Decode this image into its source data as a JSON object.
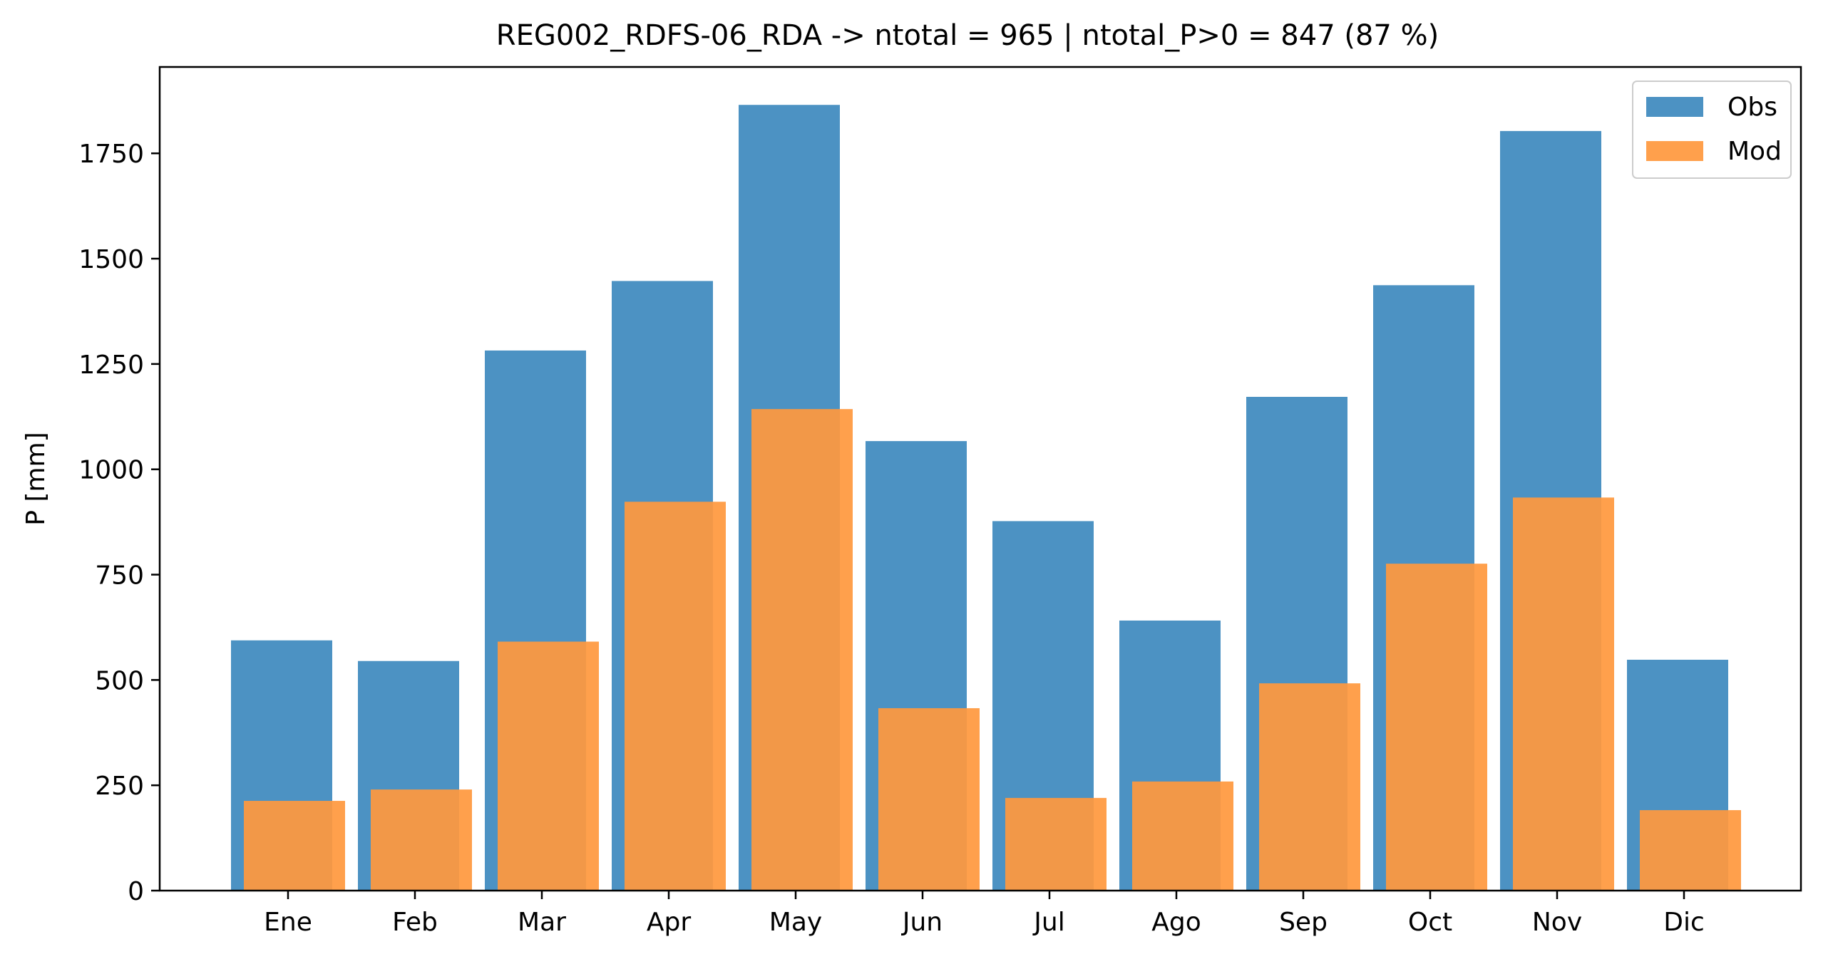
{
  "chart_data": {
    "type": "bar",
    "title": "REG002_RDFS-06_RDA -> ntotal = 965 | ntotal_P>0 = 847 (87 %)",
    "xlabel": "",
    "ylabel": "P [mm]",
    "categories": [
      "Ene",
      "Feb",
      "Mar",
      "Apr",
      "May",
      "Jun",
      "Jul",
      "Ago",
      "Sep",
      "Oct",
      "Nov",
      "Dic"
    ],
    "series": [
      {
        "name": "Obs",
        "color": "#4c92c3",
        "values": [
          594,
          545,
          1282,
          1447,
          1865,
          1067,
          877,
          641,
          1172,
          1437,
          1803,
          548
        ]
      },
      {
        "name": "Mod",
        "color": "#ff993e",
        "values": [
          213,
          240,
          591,
          923,
          1143,
          433,
          220,
          259,
          492,
          776,
          933,
          191
        ]
      }
    ],
    "ylim": [
      0,
      1955
    ],
    "yticks": [
      0,
      250,
      500,
      750,
      1000,
      1250,
      1500,
      1750
    ],
    "grid": false,
    "legend_position": "top-right"
  }
}
